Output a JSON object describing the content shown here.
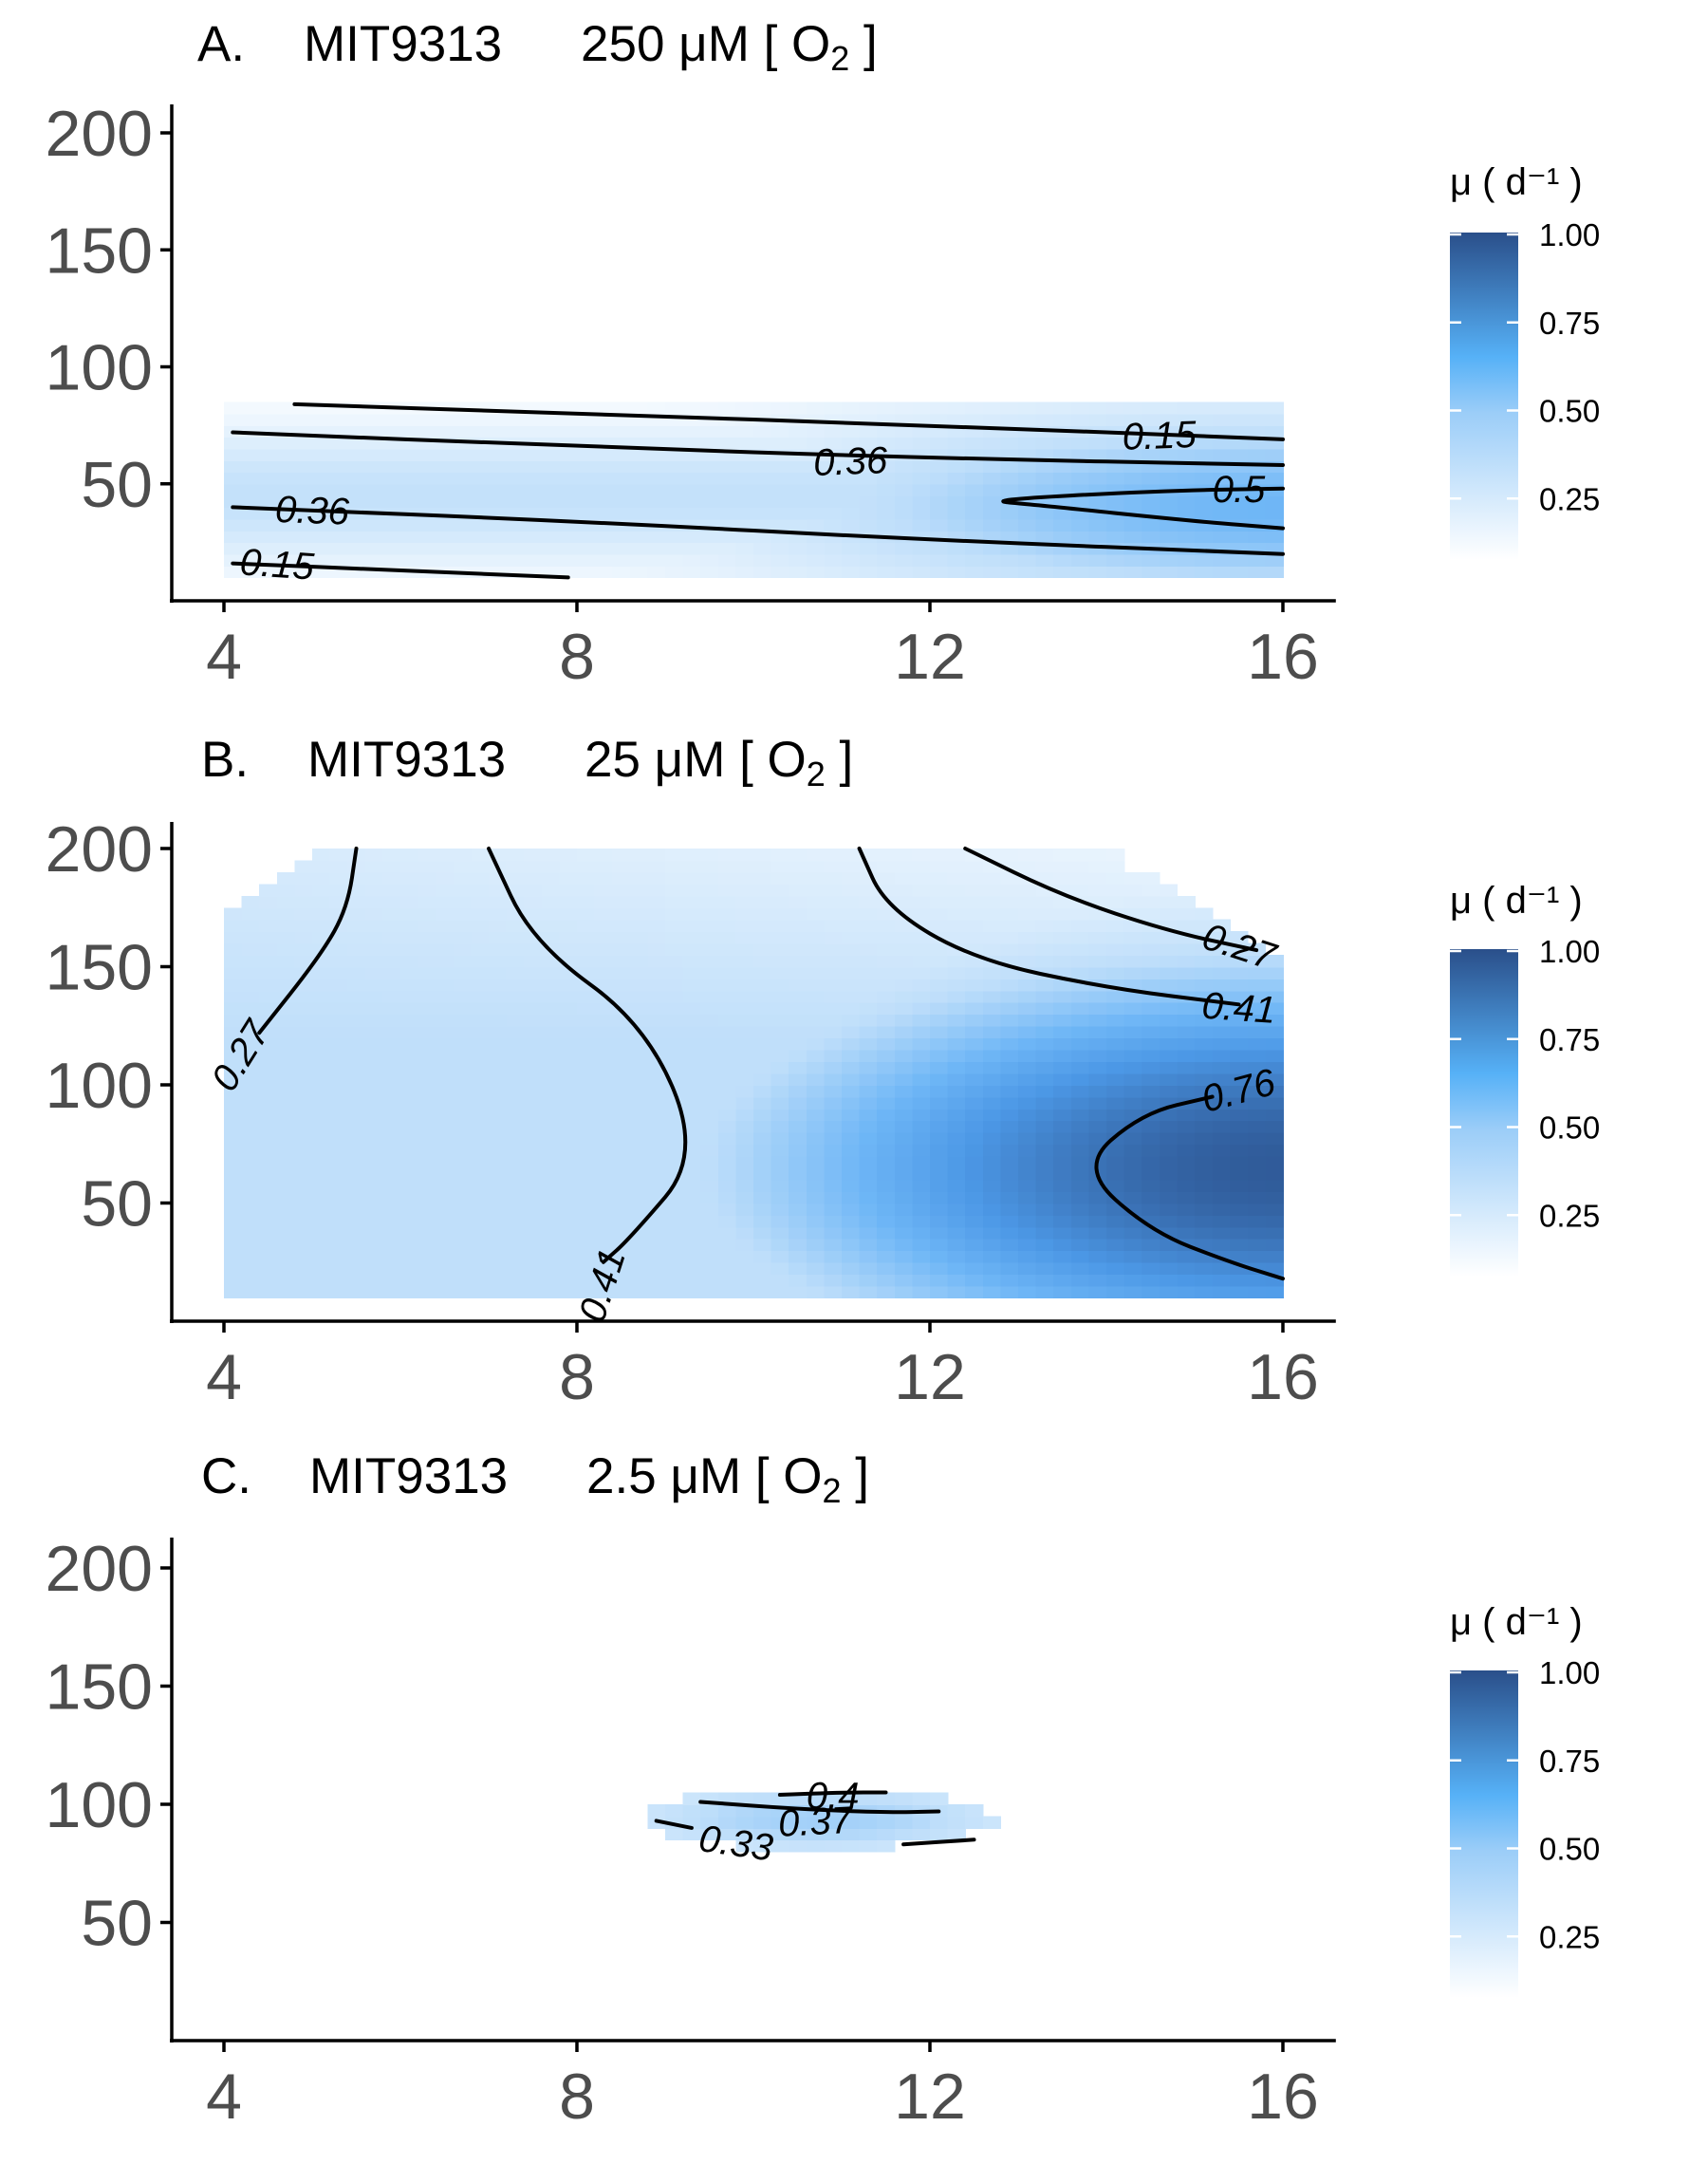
{
  "colors": {
    "low": "#ffffff",
    "mid": "#56b1f7",
    "high": "#132b43",
    "axis_text": "#4d4d4d",
    "contour": "#000000"
  },
  "chart_data": [
    {
      "type": "heatmap",
      "panel": "A.",
      "title": "MIT9313 250 μM [ O₂ ]",
      "title_parts": {
        "letter": "A.",
        "strain": "MIT9313",
        "conc": "250 μM [ O",
        "sub": "2",
        "close": " ]"
      },
      "xlabel": "",
      "ylabel": "",
      "xlim": [
        3.6,
        16.6
      ],
      "ylim": [
        0,
        205
      ],
      "xticks": [
        "4",
        "8",
        "12",
        "16"
      ],
      "yticks": [
        "50",
        "100",
        "150",
        "200"
      ],
      "region": {
        "x": [
          4,
          16
        ],
        "y": [
          10,
          84
        ]
      },
      "peak": {
        "x": 16,
        "y": 40,
        "value": 0.55
      },
      "legend": {
        "title": "μ ( d⁻¹ )",
        "ticks": [
          "0.25",
          "0.50",
          "0.75",
          "1.00"
        ],
        "range": [
          0,
          1
        ]
      },
      "contours": [
        {
          "level": "0.15",
          "points": [
            [
              4.8,
              84
            ],
            [
              8,
              80
            ],
            [
              12,
              75
            ],
            [
              16,
              69
            ]
          ]
        },
        {
          "level": "0.36",
          "points": [
            [
              4.1,
              72
            ],
            [
              8,
              66
            ],
            [
              12,
              61
            ],
            [
              16,
              58
            ]
          ]
        },
        {
          "level": "0.5",
          "points": [
            [
              16,
              48
            ],
            [
              14.6,
              47
            ],
            [
              12.6,
              43
            ],
            [
              13.2,
              41
            ],
            [
              15,
              34
            ],
            [
              16,
              31
            ]
          ]
        },
        {
          "level": "0.36",
          "points": [
            [
              4.1,
              40
            ],
            [
              8,
              34
            ],
            [
              12,
              26
            ],
            [
              16,
              20
            ]
          ]
        },
        {
          "level": "0.15",
          "points": [
            [
              4.1,
              16
            ],
            [
              6,
              13
            ],
            [
              7.9,
              10
            ]
          ]
        }
      ],
      "contour_labels": [
        {
          "text": "0.15",
          "x": 14.6,
          "y": 70,
          "angle": -2
        },
        {
          "text": "0.36",
          "x": 11.1,
          "y": 59,
          "angle": -2
        },
        {
          "text": "0.5",
          "x": 15.5,
          "y": 47,
          "angle": 0
        },
        {
          "text": "0.36",
          "x": 5.0,
          "y": 38,
          "angle": 2
        },
        {
          "text": "0.15",
          "x": 4.6,
          "y": 15,
          "angle": 4
        }
      ]
    },
    {
      "type": "heatmap",
      "panel": "B.",
      "title": "MIT9313 25 μM [ O₂ ]",
      "title_parts": {
        "letter": "B.",
        "strain": "MIT9313",
        "conc": "25 μM [ O",
        "sub": "2",
        "close": " ]"
      },
      "xlabel": "",
      "ylabel": "",
      "xlim": [
        3.6,
        16.6
      ],
      "ylim": [
        0,
        205
      ],
      "xticks": [
        "4",
        "8",
        "12",
        "16"
      ],
      "yticks": [
        "50",
        "100",
        "150",
        "200"
      ],
      "region": {
        "x": [
          4,
          16
        ],
        "y": [
          10,
          200
        ]
      },
      "peak": {
        "x": 16,
        "y": 65,
        "value": 0.95
      },
      "legend": {
        "title": "μ ( d⁻¹ )",
        "ticks": [
          "0.25",
          "0.50",
          "0.75",
          "1.00"
        ],
        "range": [
          0,
          1
        ]
      },
      "contours": [
        {
          "level": "0.27",
          "points": [
            [
              5.5,
              200
            ],
            [
              5.4,
              175
            ],
            [
              5.1,
              155
            ],
            [
              4.4,
              122
            ]
          ]
        },
        {
          "level": "0.41",
          "points": [
            [
              7.0,
              200
            ],
            [
              7.5,
              160
            ],
            [
              8.8,
              125
            ],
            [
              9.4,
              70
            ],
            [
              8.6,
              35
            ],
            [
              8.3,
              25
            ]
          ]
        },
        {
          "level": "0.41",
          "points": [
            [
              11.2,
              200
            ],
            [
              11.5,
              175
            ],
            [
              12.5,
              153
            ],
            [
              14,
              141
            ],
            [
              15.5,
              134
            ]
          ]
        },
        {
          "level": "0.27",
          "points": [
            [
              12.4,
              200
            ],
            [
              13.5,
              180
            ],
            [
              14.7,
              165
            ],
            [
              15.7,
              157
            ]
          ]
        },
        {
          "level": "0.76",
          "points": [
            [
              15.2,
              95
            ],
            [
              14.4,
              88
            ],
            [
              13.7,
              65
            ],
            [
              14.5,
              38
            ],
            [
              15.4,
              25
            ],
            [
              16,
              18
            ]
          ]
        }
      ],
      "contour_labels": [
        {
          "text": "0.27",
          "x": 4.2,
          "y": 112,
          "angle": -58
        },
        {
          "text": "0.41",
          "x": 8.3,
          "y": 15,
          "angle": -72
        },
        {
          "text": "0.27",
          "x": 15.5,
          "y": 158,
          "angle": 18
        },
        {
          "text": "0.41",
          "x": 15.5,
          "y": 132,
          "angle": 4
        },
        {
          "text": "0.76",
          "x": 15.5,
          "y": 97,
          "angle": -15
        }
      ]
    },
    {
      "type": "heatmap",
      "panel": "C.",
      "title": "MIT9313 2.5 μM [ O₂ ]",
      "title_parts": {
        "letter": "C.",
        "strain": "MIT9313",
        "conc": "2.5 μM [ O",
        "sub": "2",
        "close": " ]"
      },
      "xlabel": "",
      "ylabel": "",
      "xlim": [
        3.6,
        16.6
      ],
      "ylim": [
        0,
        205
      ],
      "xticks": [
        "4",
        "8",
        "12",
        "16"
      ],
      "yticks": [
        "50",
        "100",
        "150",
        "200"
      ],
      "region": {
        "ellipse": {
          "cx": 10.75,
          "cy": 94,
          "rx": 2.0,
          "ry": 13
        }
      },
      "peak": {
        "x": 11.2,
        "y": 97,
        "value": 0.42
      },
      "legend": {
        "title": "μ ( d⁻¹ )",
        "ticks": [
          "0.25",
          "0.50",
          "0.75",
          "1.00"
        ],
        "range": [
          0,
          1
        ]
      },
      "contours": [
        {
          "level": "0.4",
          "points": [
            [
              10.3,
              104
            ],
            [
              11,
              105
            ],
            [
              11.5,
              105
            ]
          ]
        },
        {
          "level": "0.37",
          "points": [
            [
              9.4,
              101
            ],
            [
              10.5,
              98
            ],
            [
              11.5,
              96.5
            ],
            [
              12.1,
              97
            ]
          ]
        },
        {
          "level": "0.33",
          "points": [
            [
              8.9,
              93
            ],
            [
              9.3,
              90
            ]
          ]
        },
        {
          "level": "0.33",
          "points": [
            [
              11.7,
              83
            ],
            [
              12.5,
              85
            ]
          ]
        }
      ],
      "contour_labels": [
        {
          "text": "0.4",
          "x": 10.9,
          "y": 103,
          "angle": 0
        },
        {
          "text": "0.37",
          "x": 10.7,
          "y": 92,
          "angle": -3
        },
        {
          "text": "0.33",
          "x": 9.8,
          "y": 83,
          "angle": 8
        }
      ]
    }
  ]
}
